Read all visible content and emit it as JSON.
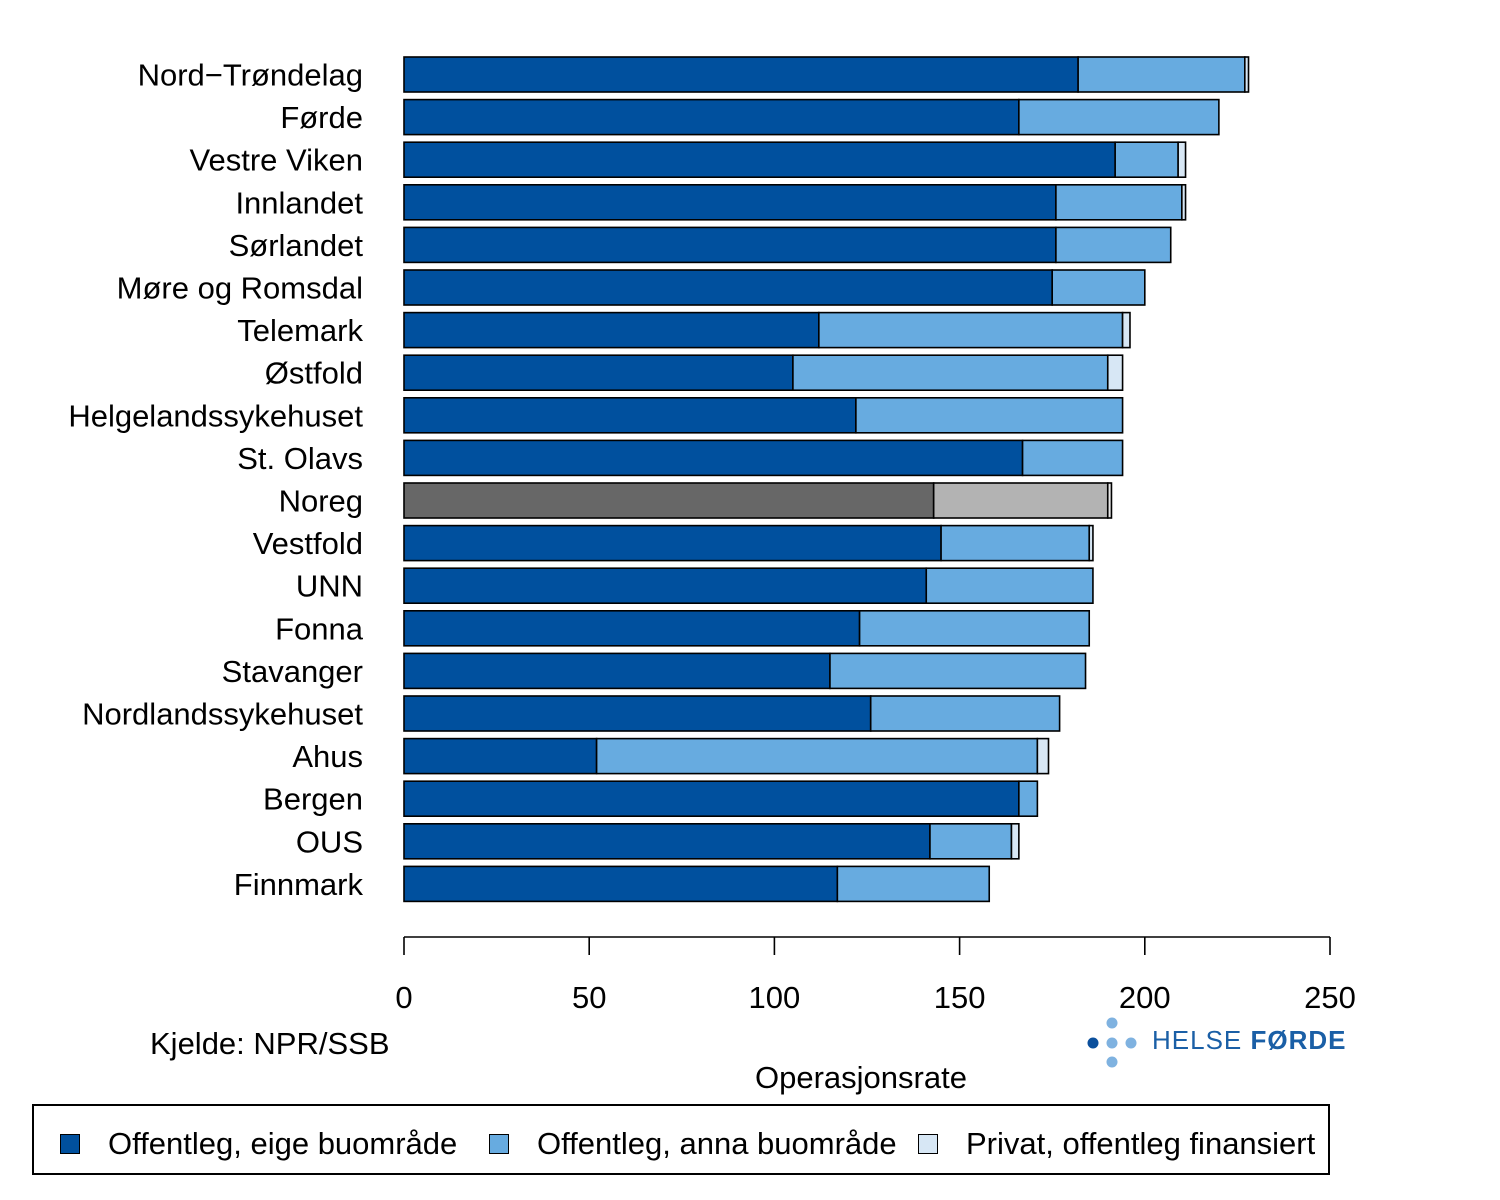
{
  "chart_data": {
    "type": "bar",
    "orientation": "horizontal",
    "stacked": true,
    "xlabel": "Operasjonsrate",
    "xlim": [
      0,
      250
    ],
    "xticks": [
      0,
      50,
      100,
      150,
      200,
      250
    ],
    "categories": [
      "Nord−Trøndelag",
      "Førde",
      "Vestre Viken",
      "Innlandet",
      "Sørlandet",
      "Møre og Romsdal",
      "Telemark",
      "Østfold",
      "Helgelandssykehuset",
      "St. Olavs",
      "Noreg",
      "Vestfold",
      "UNN",
      "Fonna",
      "Stavanger",
      "Nordlandssykehuset",
      "Ahus",
      "Bergen",
      "OUS",
      "Finnmark"
    ],
    "highlight_category": "Noreg",
    "series": [
      {
        "name": "Offentleg, eige buområde",
        "color": "#00509e",
        "highlight_color": "#676767",
        "values": [
          182,
          166,
          192,
          176,
          176,
          175,
          112,
          105,
          122,
          167,
          143,
          145,
          141,
          123,
          115,
          126,
          52,
          166,
          142,
          117
        ]
      },
      {
        "name": "Offentleg, anna buområde",
        "color": "#67abe0",
        "highlight_color": "#b3b3b3",
        "values": [
          45,
          54,
          17,
          34,
          31,
          25,
          82,
          85,
          72,
          27,
          47,
          40,
          45,
          62,
          69,
          51,
          119,
          5,
          22,
          41
        ]
      },
      {
        "name": "Privat, offentleg finansiert",
        "color": "#d7e7f5",
        "highlight_color": "#e6e6e6",
        "values": [
          1,
          0,
          2,
          1,
          0,
          0,
          2,
          4,
          0,
          0,
          1,
          1,
          0,
          0,
          0,
          0,
          3,
          0,
          2,
          0
        ]
      }
    ]
  },
  "source": "Kjelde: NPR/SSB",
  "logo": {
    "text_light": "HELSE ",
    "text_bold": "FØRDE"
  },
  "colors": {
    "dark_blue": "#00509e",
    "light_blue": "#67abe0",
    "pale_blue": "#d7e7f5",
    "logo_blue": "#1a5fa6"
  }
}
